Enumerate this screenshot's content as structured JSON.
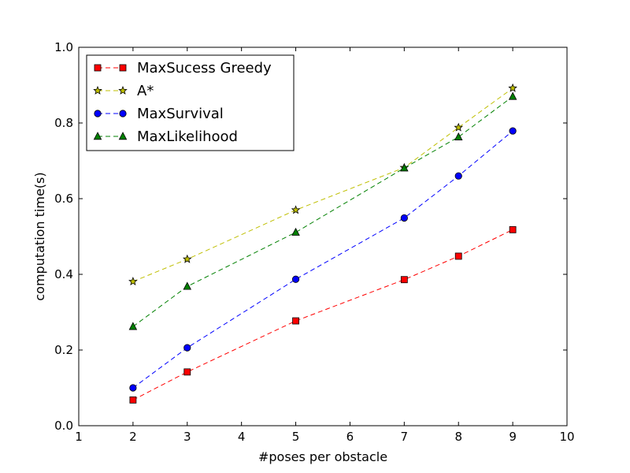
{
  "chart_data": {
    "type": "line",
    "xlabel": "#poses per obstacle",
    "ylabel": "computation time(s)",
    "xlim": [
      1,
      10
    ],
    "ylim": [
      0.0,
      1.0
    ],
    "xticks": [
      "1",
      "2",
      "3",
      "4",
      "5",
      "6",
      "7",
      "8",
      "9",
      "10"
    ],
    "yticks": [
      "0.0",
      "0.2",
      "0.4",
      "0.6",
      "0.8",
      "1.0"
    ],
    "grid": false,
    "legend_position": "top-left",
    "series": [
      {
        "name": "MaxSucess Greedy",
        "color": "#ff0000",
        "marker": "square",
        "x": [
          2,
          3,
          5,
          7,
          8,
          9
        ],
        "y": [
          0.068,
          0.142,
          0.277,
          0.386,
          0.448,
          0.518
        ]
      },
      {
        "name": "A*",
        "color": "#bfbf00",
        "marker": "star",
        "x": [
          2,
          3,
          5,
          7,
          8,
          9
        ],
        "y": [
          0.381,
          0.44,
          0.57,
          0.682,
          0.788,
          0.892
        ]
      },
      {
        "name": "MaxSurvival",
        "color": "#0000ff",
        "marker": "circle",
        "x": [
          2,
          3,
          5,
          7,
          8,
          9
        ],
        "y": [
          0.1,
          0.206,
          0.387,
          0.549,
          0.66,
          0.779
        ]
      },
      {
        "name": "MaxLikelihood",
        "color": "#008000",
        "marker": "triangle",
        "x": [
          2,
          3,
          5,
          7,
          8,
          9
        ],
        "y": [
          0.262,
          0.368,
          0.511,
          0.681,
          0.763,
          0.87
        ]
      }
    ]
  }
}
